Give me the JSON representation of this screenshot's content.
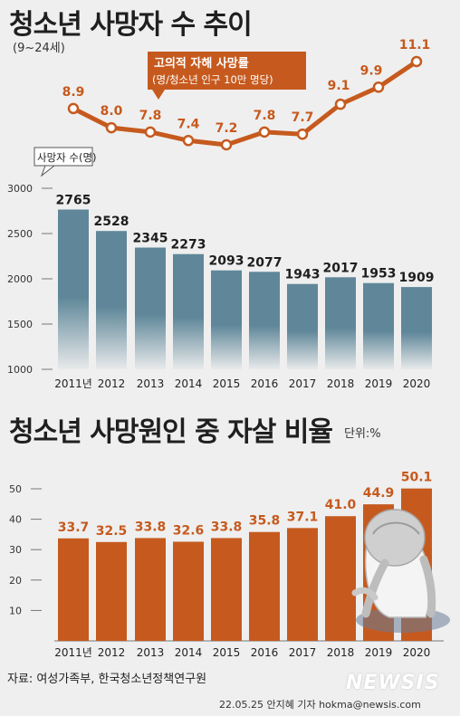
{
  "header": {
    "title": "청소년 사망자 수 추이",
    "subtitle": "(9~24세)"
  },
  "line_chart": {
    "callout_title": "고의적 자해 사망률",
    "callout_sub": "(명/청소년 인구 10만 명당)",
    "color": "#c65a1e"
  },
  "bar_chart1": {
    "ylabel": "사망자 수(명)",
    "color": "#5f8799"
  },
  "section2": {
    "title": "청소년 사망원인 중 자살 비율",
    "unit": "단위:%",
    "color": "#c65a1e"
  },
  "footer": {
    "source": "자료: 여성가족부, 한국청소년정책연구원",
    "credit": "22.05.25 안지혜 기자 hokma@newsis.com",
    "logo": "NEWSIS"
  },
  "chart_data": [
    {
      "type": "line",
      "title": "고의적 자해 사망률",
      "x": [
        "2011",
        "2012",
        "2013",
        "2014",
        "2015",
        "2016",
        "2017",
        "2018",
        "2019",
        "2020"
      ],
      "series": [
        {
          "name": "고의적 자해 사망률",
          "values": [
            8.9,
            8.0,
            7.8,
            7.4,
            7.2,
            7.8,
            7.7,
            9.1,
            9.9,
            11.1
          ]
        }
      ]
    },
    {
      "type": "bar",
      "categories": [
        "2011년",
        "2012",
        "2013",
        "2014",
        "2015",
        "2016",
        "2017",
        "2018",
        "2019",
        "2020"
      ],
      "values": [
        2765,
        2528,
        2345,
        2273,
        2093,
        2077,
        1943,
        2017,
        1953,
        1909
      ],
      "ylabel": "사망자 수(명)",
      "ylim": [
        1000,
        3000
      ],
      "yticks": [
        1000,
        1500,
        2000,
        2500,
        3000
      ]
    },
    {
      "type": "bar",
      "title": "청소년 사망원인 중 자살 비율",
      "categories": [
        "2011년",
        "2012",
        "2013",
        "2014",
        "2015",
        "2016",
        "2017",
        "2018",
        "2019",
        "2020"
      ],
      "values": [
        33.7,
        32.5,
        33.8,
        32.6,
        33.8,
        35.8,
        37.1,
        41.0,
        44.9,
        50.1
      ],
      "unit": "단위:%",
      "ylim": [
        0,
        50
      ],
      "yticks": [
        10,
        20,
        30,
        40,
        50
      ]
    }
  ]
}
